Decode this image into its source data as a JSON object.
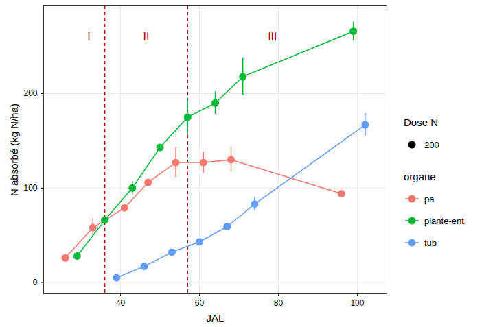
{
  "chart_data": {
    "type": "line",
    "x_label": "JAL",
    "y_label": "N absorbé (kg N/ha)",
    "xlim": [
      20.5,
      107.5
    ],
    "xticks": [
      40,
      60,
      80,
      100
    ],
    "ylim": [
      -12,
      293
    ],
    "yticks": [
      0,
      100,
      200
    ],
    "grid": true,
    "legend": "right",
    "marker": "circle",
    "size_legend": {
      "title": "Dose N",
      "values": [
        200
      ]
    },
    "legend_title": "organe",
    "vlines": [
      36,
      57
    ],
    "annotations": [
      {
        "text": "I",
        "x": 32,
        "y": 260
      },
      {
        "text": "II",
        "x": 46.5,
        "y": 260
      },
      {
        "text": "III",
        "x": 78.5,
        "y": 260
      }
    ],
    "series": [
      {
        "name": "pa",
        "color": "#F8766D",
        "x": [
          26,
          33,
          41,
          47,
          54,
          61,
          68,
          96
        ],
        "values": [
          26,
          58,
          79,
          106,
          127,
          127,
          130,
          94
        ],
        "errors": [
          null,
          10,
          null,
          null,
          16,
          11,
          13,
          null
        ]
      },
      {
        "name": "plante-ent",
        "color": "#00BA38",
        "x": [
          29,
          36,
          43,
          50,
          57,
          64,
          71,
          99
        ],
        "values": [
          28,
          66,
          100,
          143,
          175,
          190,
          218,
          266
        ],
        "errors": [
          null,
          null,
          7,
          null,
          19,
          12,
          20,
          10
        ]
      },
      {
        "name": "tub",
        "color": "#619CFF",
        "x": [
          39,
          46,
          53,
          60,
          67,
          74,
          102
        ],
        "values": [
          5,
          17,
          32,
          43,
          59,
          83,
          167
        ],
        "errors": [
          null,
          null,
          null,
          null,
          null,
          7,
          12
        ]
      }
    ]
  }
}
